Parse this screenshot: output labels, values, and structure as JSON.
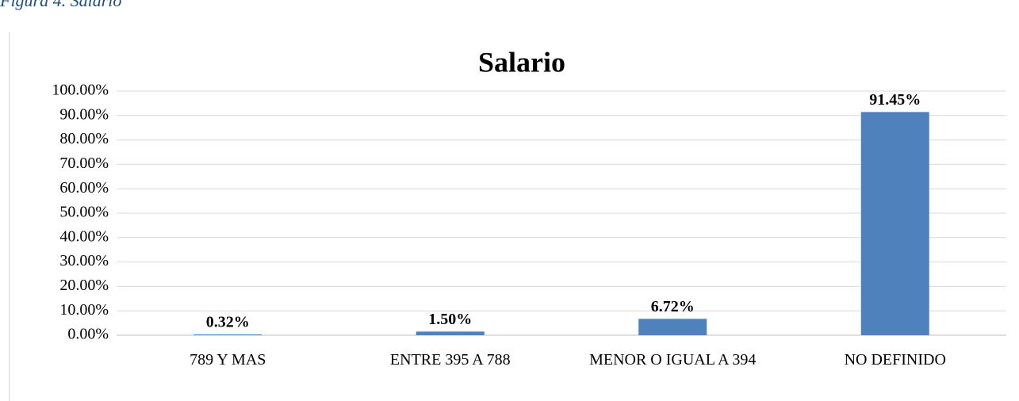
{
  "caption": "Figura 4. Salario",
  "chart_data": {
    "type": "bar",
    "title": "Salario",
    "categories": [
      "789 Y MAS",
      "ENTRE 395 A 788",
      "MENOR O IGUAL A 394",
      "NO DEFINIDO"
    ],
    "values": [
      0.32,
      1.5,
      6.72,
      91.45
    ],
    "value_labels": [
      "0.32%",
      "1.50%",
      "6.72%",
      "91.45%"
    ],
    "color": "#4f81bd",
    "ylim": [
      0,
      100
    ],
    "yticks": [
      {
        "value": 0,
        "label": "0.00%"
      },
      {
        "value": 10,
        "label": "10.00%"
      },
      {
        "value": 20,
        "label": "20.00%"
      },
      {
        "value": 30,
        "label": "30.00%"
      },
      {
        "value": 40,
        "label": "40.00%"
      },
      {
        "value": 50,
        "label": "50.00%"
      },
      {
        "value": 60,
        "label": "60.00%"
      },
      {
        "value": 70,
        "label": "70.00%"
      },
      {
        "value": 80,
        "label": "80.00%"
      },
      {
        "value": 90,
        "label": "90.00%"
      },
      {
        "value": 100,
        "label": "100.00%"
      }
    ],
    "grid": true
  }
}
